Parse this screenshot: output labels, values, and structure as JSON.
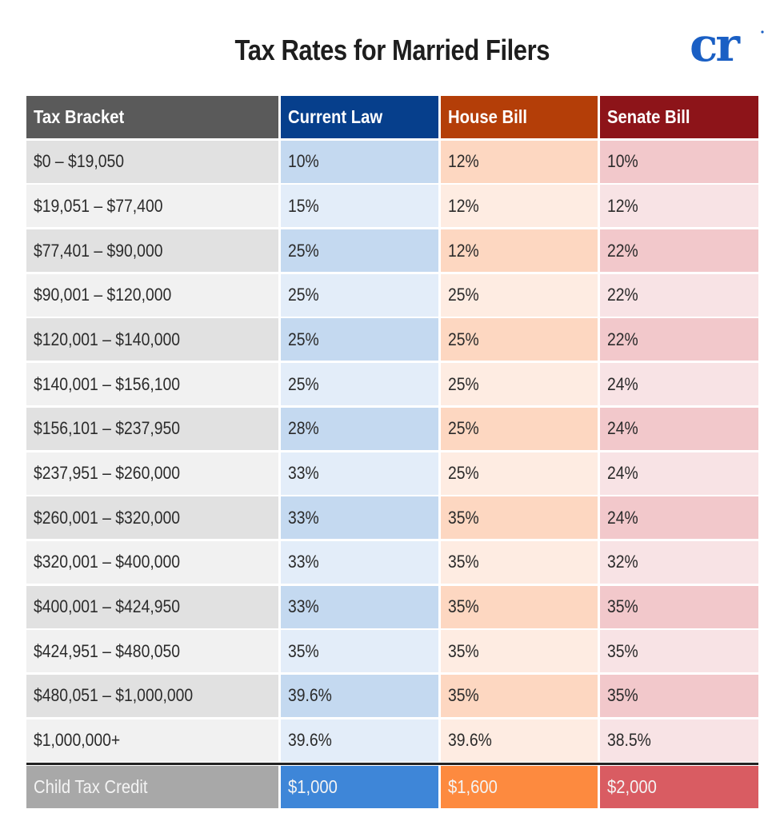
{
  "title": "Tax Rates for Married Filers",
  "logo": {
    "text": "cr",
    "color": "#1a5fc4",
    "icon": "cr-logo-icon"
  },
  "colors": {
    "bracket_header": "#5a5a5a",
    "current_law": "#063f8c",
    "house_bill": "#b43e08",
    "senate_bill": "#8d1419"
  },
  "headers": [
    "Tax Bracket",
    "Current Law",
    "House Bill",
    "Senate Bill"
  ],
  "rows": [
    {
      "bracket": "$0 – $19,050",
      "current": "10%",
      "house": "12%",
      "senate": "10%"
    },
    {
      "bracket": "$19,051 – $77,400",
      "current": "15%",
      "house": "12%",
      "senate": "12%"
    },
    {
      "bracket": "$77,401 – $90,000",
      "current": "25%",
      "house": "12%",
      "senate": "22%"
    },
    {
      "bracket": "$90,001 – $120,000",
      "current": "25%",
      "house": "25%",
      "senate": "22%"
    },
    {
      "bracket": "$120,001 – $140,000",
      "current": "25%",
      "house": "25%",
      "senate": "22%"
    },
    {
      "bracket": "$140,001 – $156,100",
      "current": "25%",
      "house": "25%",
      "senate": "24%"
    },
    {
      "bracket": "$156,101 – $237,950",
      "current": "28%",
      "house": "25%",
      "senate": "24%"
    },
    {
      "bracket": "$237,951 – $260,000",
      "current": "33%",
      "house": "25%",
      "senate": "24%"
    },
    {
      "bracket": "$260,001 – $320,000",
      "current": "33%",
      "house": "35%",
      "senate": "24%"
    },
    {
      "bracket": "$320,001 – $400,000",
      "current": "33%",
      "house": "35%",
      "senate": "32%"
    },
    {
      "bracket": "$400,001 – $424,950",
      "current": "33%",
      "house": "35%",
      "senate": "35%"
    },
    {
      "bracket": "$424,951 – $480,050",
      "current": "35%",
      "house": "35%",
      "senate": "35%"
    },
    {
      "bracket": "$480,051 – $1,000,000",
      "current": "39.6%",
      "house": "35%",
      "senate": "35%"
    },
    {
      "bracket": "$1,000,000+",
      "current": "39.6%",
      "house": "39.6%",
      "senate": "38.5%"
    }
  ],
  "footer": {
    "label": "Child Tax Credit",
    "current": "$1,000",
    "house": "$1,600",
    "senate": "$2,000"
  },
  "chart_data": {
    "type": "table",
    "title": "Tax Rates for Married Filers",
    "columns": [
      "Tax Bracket",
      "Current Law",
      "House Bill",
      "Senate Bill"
    ],
    "rows": [
      [
        "$0 – $19,050",
        "10%",
        "12%",
        "10%"
      ],
      [
        "$19,051 – $77,400",
        "15%",
        "12%",
        "12%"
      ],
      [
        "$77,401 – $90,000",
        "25%",
        "12%",
        "22%"
      ],
      [
        "$90,001 – $120,000",
        "25%",
        "25%",
        "22%"
      ],
      [
        "$120,001 – $140,000",
        "25%",
        "25%",
        "22%"
      ],
      [
        "$140,001 – $156,100",
        "25%",
        "25%",
        "24%"
      ],
      [
        "$156,101 – $237,950",
        "28%",
        "25%",
        "24%"
      ],
      [
        "$237,951 – $260,000",
        "33%",
        "25%",
        "24%"
      ],
      [
        "$260,001 – $320,000",
        "33%",
        "35%",
        "24%"
      ],
      [
        "$320,001 – $400,000",
        "33%",
        "35%",
        "32%"
      ],
      [
        "$400,001 – $424,950",
        "33%",
        "35%",
        "35%"
      ],
      [
        "$424,951 – $480,050",
        "35%",
        "35%",
        "35%"
      ],
      [
        "$480,051 – $1,000,000",
        "39.6%",
        "35%",
        "35%"
      ],
      [
        "$1,000,000+",
        "39.6%",
        "39.6%",
        "38.5%"
      ],
      [
        "Child Tax Credit",
        "$1,000",
        "$1,600",
        "$2,000"
      ]
    ],
    "series": [
      {
        "name": "Current Law",
        "values": [
          10,
          15,
          25,
          25,
          25,
          25,
          28,
          33,
          33,
          33,
          33,
          35,
          39.6,
          39.6
        ]
      },
      {
        "name": "House Bill",
        "values": [
          12,
          12,
          12,
          25,
          25,
          25,
          25,
          25,
          35,
          35,
          35,
          35,
          35,
          39.6
        ]
      },
      {
        "name": "Senate Bill",
        "values": [
          10,
          12,
          22,
          22,
          22,
          24,
          24,
          24,
          24,
          32,
          35,
          35,
          35,
          38.5
        ]
      }
    ],
    "child_tax_credit": {
      "Current Law": 1000,
      "House Bill": 1600,
      "Senate Bill": 2000
    }
  }
}
